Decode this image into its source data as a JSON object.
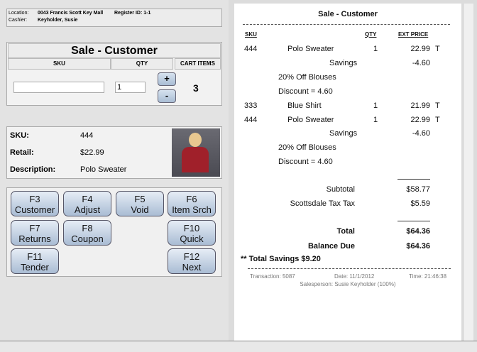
{
  "header": {
    "location_label": "Location:",
    "location": "0043 Francis Scott Key Mall",
    "register": "Register ID: 1-1",
    "cashier_label": "Cashier:",
    "cashier": "Keyholder, Susie"
  },
  "sale": {
    "title": "Sale - Customer",
    "sku_header": "SKU",
    "qty_header": "QTY",
    "cart_header": "CART ITEMS",
    "sku_value": "",
    "qty_value": "1",
    "plus": "+",
    "minus": "-",
    "cart_count": "3"
  },
  "detail": {
    "sku_label": "SKU:",
    "sku": "444",
    "retail_label": "Retail:",
    "retail": "$22.99",
    "desc_label": "Description:",
    "desc": "Polo Sweater"
  },
  "fkeys": [
    {
      "key": "F3",
      "label": "Customer"
    },
    {
      "key": "F4",
      "label": "Adjust"
    },
    {
      "key": "F5",
      "label": "Void"
    },
    {
      "key": "F6",
      "label": "Item Srch"
    },
    {
      "key": "F7",
      "label": "Returns"
    },
    {
      "key": "F8",
      "label": "Coupon"
    },
    {
      "key": "F10",
      "label": "Quick"
    },
    {
      "key": "F11",
      "label": "Tender"
    },
    {
      "key": "F12",
      "label": "Next"
    }
  ],
  "receipt": {
    "title": "Sale - Customer",
    "col_sku": "SKU",
    "col_qty": "QTY",
    "col_price": "EXT PRICE",
    "lines": [
      {
        "sku": "444",
        "desc": "Polo Sweater",
        "qty": "1",
        "price": "22.99",
        "tax": "T"
      },
      {
        "savings": "Savings",
        "price": "-4.60"
      },
      {
        "note": "20% Off Blouses"
      },
      {
        "note": "Discount = 4.60"
      },
      {
        "sku": "333",
        "desc": "Blue Shirt",
        "qty": "1",
        "price": "21.99",
        "tax": "T"
      },
      {
        "sku": "444",
        "desc": "Polo Sweater",
        "qty": "1",
        "price": "22.99",
        "tax": "T"
      },
      {
        "savings": "Savings",
        "price": "-4.60"
      },
      {
        "note": "20% Off Blouses"
      },
      {
        "note": "Discount = 4.60"
      }
    ],
    "subtotal_label": "Subtotal",
    "subtotal": "$58.77",
    "tax_label": "Scottsdale Tax Tax",
    "tax": "$5.59",
    "total_label": "Total",
    "total": "$64.36",
    "balance_label": "Balance Due",
    "balance": "$64.36",
    "total_savings": "** Total Savings $9.20",
    "transaction": "Transaction: 5087",
    "date": "Date: 11/1/2012",
    "time": "Time: 21:46:38",
    "salesperson": "Salesperson: Susie Keyholder (100%)"
  }
}
